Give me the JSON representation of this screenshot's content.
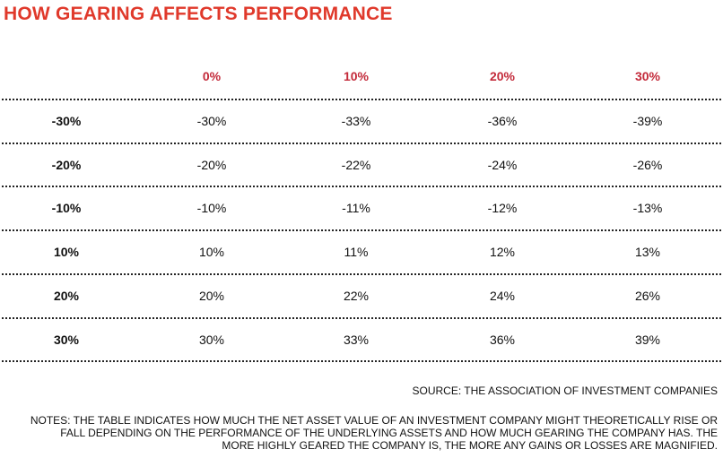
{
  "title": "HOW GEARING AFFECTS PERFORMANCE",
  "chart_data": {
    "type": "table",
    "columns": [
      "0%",
      "10%",
      "20%",
      "30%"
    ],
    "rows": [
      {
        "label": "-30%",
        "values": [
          "-30%",
          "-33%",
          "-36%",
          "-39%"
        ]
      },
      {
        "label": "-20%",
        "values": [
          "-20%",
          "-22%",
          "-24%",
          "-26%"
        ]
      },
      {
        "label": "-10%",
        "values": [
          "-10%",
          "-11%",
          "-12%",
          "-13%"
        ]
      },
      {
        "label": "10%",
        "values": [
          "10%",
          "11%",
          "12%",
          "13%"
        ]
      },
      {
        "label": "20%",
        "values": [
          "20%",
          "22%",
          "24%",
          "26%"
        ]
      },
      {
        "label": "30%",
        "values": [
          "30%",
          "33%",
          "36%",
          "39%"
        ]
      }
    ]
  },
  "source": "SOURCE: THE ASSOCIATION OF INVESTMENT COMPANIES",
  "notes": "NOTES: THE TABLE INDICATES HOW MUCH THE NET ASSET VALUE OF AN INVESTMENT COMPANY MIGHT THEORETICALLY RISE OR FALL DEPENDING ON THE PERFORMANCE OF THE UNDERLYING ASSETS AND HOW MUCH GEARING THE COMPANY HAS. THE MORE HIGHLY GEARED THE COMPANY IS, THE MORE ANY GAINS OR LOSSES ARE MAGNIFIED.",
  "colors": {
    "title": "#e0392b",
    "column_header": "#c32a3a",
    "text": "#111111",
    "rule": "#222222"
  }
}
